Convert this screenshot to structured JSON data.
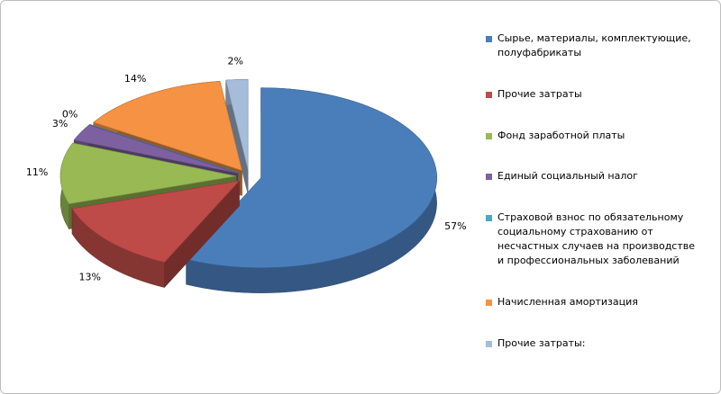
{
  "chart_data": {
    "type": "pie",
    "categories": [
      "Сырье, материалы, комплектующие, полуфабрикаты",
      "Прочие затраты",
      "Фонд заработной платы",
      "Единый социальный налог",
      "Страховой взнос по обязательному социальному страхованию от несчастных случаев на производстве и профессиональных заболеваний",
      "Начисленная амортизация",
      "Прочие затраты:"
    ],
    "values": [
      57,
      13,
      11,
      3,
      0,
      14,
      2
    ],
    "value_labels": [
      "57%",
      "13%",
      "11%",
      "3%",
      "0%",
      "14%",
      "2%"
    ],
    "colors": [
      "#4a7ebb",
      "#be4b48",
      "#98b954",
      "#7d60a0",
      "#46aac5",
      "#f59243",
      "#a5bddb"
    ],
    "legend": "right"
  }
}
